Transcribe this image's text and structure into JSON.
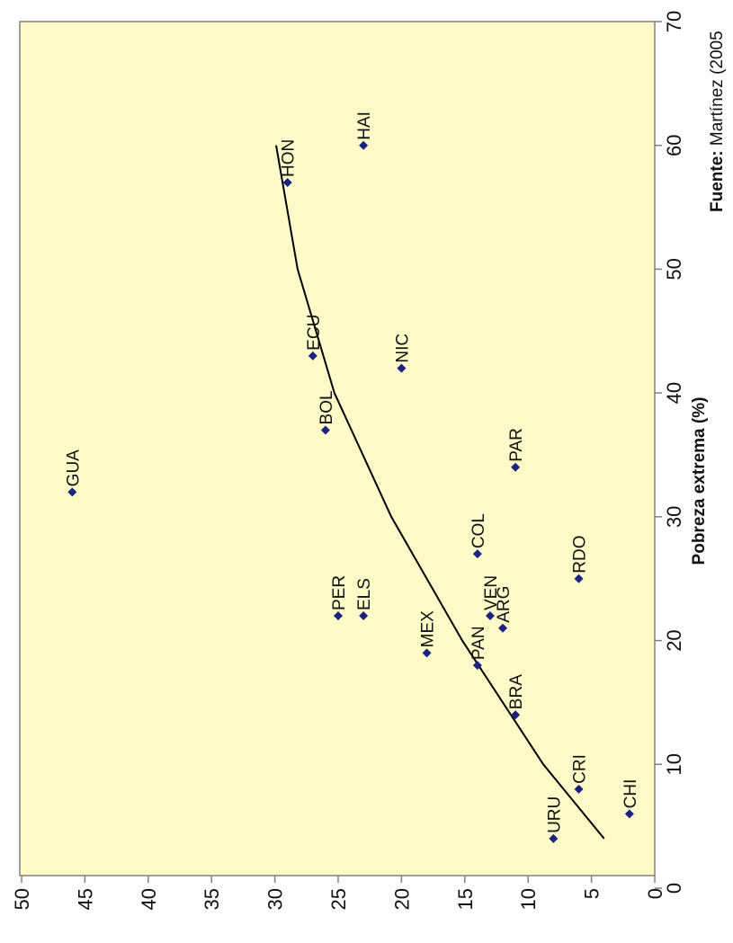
{
  "chart_data": {
    "type": "scatter",
    "title": "",
    "xlabel": "Pobreza extrema (%)",
    "ylabel": "",
    "xlim": [
      0,
      70
    ],
    "ylim": [
      0,
      50
    ],
    "x_ticks": [
      0,
      10,
      20,
      30,
      40,
      50,
      60,
      70
    ],
    "y_ticks": [
      0,
      5,
      10,
      15,
      20,
      25,
      30,
      35,
      40,
      45,
      50
    ],
    "grid": false,
    "background_color": "#fffbc8",
    "point_color": "#1a237e",
    "points": [
      {
        "label": "GUA",
        "x": 32,
        "y": 46
      },
      {
        "label": "HAI",
        "x": 60,
        "y": 23
      },
      {
        "label": "HON",
        "x": 57,
        "y": 29
      },
      {
        "label": "ECU",
        "x": 43,
        "y": 27
      },
      {
        "label": "NIC",
        "x": 42,
        "y": 20
      },
      {
        "label": "BOL",
        "x": 37,
        "y": 26
      },
      {
        "label": "PAR",
        "x": 34,
        "y": 11
      },
      {
        "label": "COL",
        "x": 27,
        "y": 14
      },
      {
        "label": "RDO",
        "x": 25,
        "y": 6
      },
      {
        "label": "PER",
        "x": 22,
        "y": 25
      },
      {
        "label": "ELS",
        "x": 22,
        "y": 23
      },
      {
        "label": "VEN",
        "x": 22,
        "y": 13
      },
      {
        "label": "ARG",
        "x": 21,
        "y": 12
      },
      {
        "label": "MEX",
        "x": 19,
        "y": 18
      },
      {
        "label": "PAN",
        "x": 18,
        "y": 14
      },
      {
        "label": "BRA",
        "x": 14,
        "y": 11
      },
      {
        "label": "CRI",
        "x": 8,
        "y": 6
      },
      {
        "label": "CHI",
        "x": 6,
        "y": 2
      },
      {
        "label": "URU",
        "x": 4,
        "y": 8
      }
    ],
    "trendline": [
      {
        "x": 4,
        "y": 4
      },
      {
        "x": 10,
        "y": 8.8
      },
      {
        "x": 20,
        "y": 15.2
      },
      {
        "x": 30,
        "y": 20.8
      },
      {
        "x": 40,
        "y": 25.3
      },
      {
        "x": 50,
        "y": 28.2
      },
      {
        "x": 60,
        "y": 29.9
      }
    ]
  },
  "source": {
    "label": "Fuente:",
    "text": " Martínez (2005"
  }
}
